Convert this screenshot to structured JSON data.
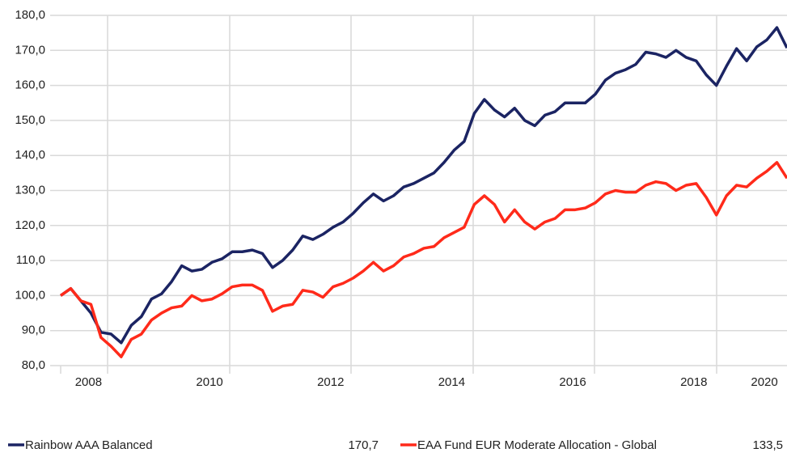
{
  "chart_data": {
    "type": "line",
    "categories": [
      null,
      null,
      null,
      "2008",
      null,
      null,
      null,
      null,
      null,
      null,
      null,
      null,
      null,
      null,
      null,
      "2010",
      null,
      null,
      null,
      null,
      null,
      null,
      null,
      null,
      null,
      null,
      null,
      "2012",
      null,
      null,
      null,
      null,
      null,
      null,
      null,
      null,
      null,
      null,
      null,
      "2014",
      null,
      null,
      null,
      null,
      null,
      null,
      null,
      null,
      null,
      null,
      null,
      "2016",
      null,
      null,
      null,
      null,
      null,
      null,
      null,
      null,
      null,
      null,
      null,
      "2018",
      null,
      null,
      null,
      null,
      null,
      null,
      "2020",
      null,
      null
    ],
    "series": [
      {
        "name": "Rainbow AAA Balanced",
        "color": "#1b2463",
        "end_label": "170,7",
        "values": [
          100,
          102,
          98.5,
          95,
          89.5,
          89,
          86.5,
          91.5,
          94,
          99,
          100.5,
          104,
          108.5,
          107,
          107.5,
          109.5,
          110.5,
          112.5,
          112.5,
          113,
          112,
          108,
          110,
          113,
          117,
          116,
          117.5,
          119.5,
          121,
          123.5,
          126.5,
          129,
          127,
          128.5,
          131,
          132,
          133.5,
          135,
          138,
          141.5,
          144,
          152,
          156,
          153,
          151,
          153.5,
          150,
          148.5,
          151.5,
          152.5,
          155,
          155,
          155,
          157.5,
          161.5,
          163.5,
          164.5,
          166,
          169.5,
          169,
          168,
          170,
          168,
          167,
          163,
          160,
          165.5,
          170.5,
          167,
          171,
          173,
          176.5,
          170.7
        ]
      },
      {
        "name": "EAA Fund EUR Moderate Allocation - Global",
        "color": "#ff2a1a",
        "end_label": "133,5",
        "values": [
          100,
          102,
          98.5,
          97.5,
          88,
          85.5,
          82.5,
          87.5,
          89,
          93,
          95,
          96.5,
          97,
          100,
          98.5,
          99,
          100.5,
          102.5,
          103,
          103,
          101.5,
          95.5,
          97,
          97.5,
          101.5,
          101,
          99.5,
          102.5,
          103.5,
          105,
          107,
          109.5,
          107,
          108.5,
          111,
          112,
          113.5,
          114,
          116.5,
          118,
          119.5,
          126,
          128.5,
          126,
          121,
          124.5,
          121,
          119,
          121,
          122,
          124.5,
          124.5,
          125,
          126.5,
          129,
          130,
          129.5,
          129.5,
          131.5,
          132.5,
          132,
          130,
          131.5,
          132,
          128,
          123,
          128.5,
          131.5,
          131,
          133.5,
          135.5,
          138,
          133.5
        ]
      }
    ],
    "ylim": [
      78,
      180
    ],
    "yticks": [
      {
        "value": 80,
        "label": "80,0"
      },
      {
        "value": 90,
        "label": "90,0"
      },
      {
        "value": 100,
        "label": "100,0"
      },
      {
        "value": 110,
        "label": "110,0"
      },
      {
        "value": 120,
        "label": "120,0"
      },
      {
        "value": 130,
        "label": "130,0"
      },
      {
        "value": 140,
        "label": "140,0"
      },
      {
        "value": 150,
        "label": "150,0"
      },
      {
        "value": 160,
        "label": "160,0"
      },
      {
        "value": 170,
        "label": "170,0"
      },
      {
        "value": 180,
        "label": "180,0"
      }
    ],
    "grid": true
  }
}
